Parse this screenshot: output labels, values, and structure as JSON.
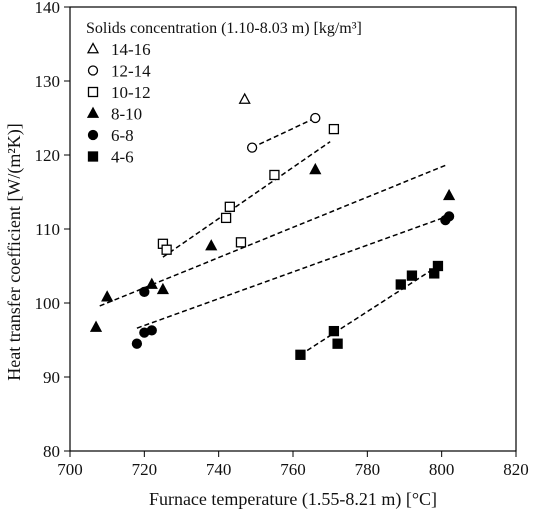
{
  "chart_data": {
    "type": "scatter",
    "xlabel": "Furnace temperature (1.55-8.21 m) [°C]",
    "ylabel": "Heat transfer coefficient [W/(m²K)]",
    "xlim": [
      700,
      820
    ],
    "ylim": [
      80,
      140
    ],
    "xticks": [
      "700",
      "720",
      "740",
      "760",
      "780",
      "800",
      "820"
    ],
    "yticks": [
      "80",
      "90",
      "100",
      "110",
      "120",
      "130",
      "140"
    ],
    "grid": false,
    "legend": {
      "title": "Solids concentration (1.10-8.03 m) [kg/m³]",
      "placement": "top-left"
    },
    "series": [
      {
        "name": "14-16",
        "marker": "open-triangle",
        "points": [
          [
            747,
            127.5
          ]
        ],
        "trendline": null
      },
      {
        "name": "12-14",
        "marker": "open-circle",
        "points": [
          [
            749,
            121.0
          ],
          [
            766,
            125.0
          ]
        ],
        "trendline": [
          [
            749,
            121.0
          ],
          [
            766,
            125.0
          ]
        ]
      },
      {
        "name": "10-12",
        "marker": "open-square",
        "points": [
          [
            725,
            108.0
          ],
          [
            726,
            107.2
          ],
          [
            742,
            111.5
          ],
          [
            743,
            113.0
          ],
          [
            746,
            108.2
          ],
          [
            755,
            117.3
          ],
          [
            771,
            123.5
          ]
        ],
        "trendline": [
          [
            725,
            106.2
          ],
          [
            770,
            121.8
          ]
        ]
      },
      {
        "name": "8-10",
        "marker": "filled-triangle",
        "points": [
          [
            707,
            96.7
          ],
          [
            710,
            100.8
          ],
          [
            722,
            102.5
          ],
          [
            725,
            101.8
          ],
          [
            738,
            107.7
          ],
          [
            766,
            118.0
          ],
          [
            802,
            114.5
          ]
        ],
        "trendline": [
          [
            708,
            99.6
          ],
          [
            801,
            118.6
          ]
        ]
      },
      {
        "name": "6-8",
        "marker": "filled-circle",
        "points": [
          [
            718,
            94.5
          ],
          [
            720,
            96.0
          ],
          [
            720,
            101.5
          ],
          [
            722,
            96.3
          ],
          [
            801,
            111.2
          ],
          [
            802,
            111.7
          ]
        ],
        "trendline": [
          [
            718,
            96.6
          ],
          [
            802,
            111.8
          ]
        ]
      },
      {
        "name": "4-6",
        "marker": "filled-square",
        "points": [
          [
            762,
            93.0
          ],
          [
            771,
            96.2
          ],
          [
            772,
            94.5
          ],
          [
            789,
            102.5
          ],
          [
            792,
            103.7
          ],
          [
            798,
            104.0
          ],
          [
            799,
            105.0
          ]
        ],
        "trendline": [
          [
            762,
            93.0
          ],
          [
            799,
            105.0
          ]
        ]
      }
    ]
  }
}
